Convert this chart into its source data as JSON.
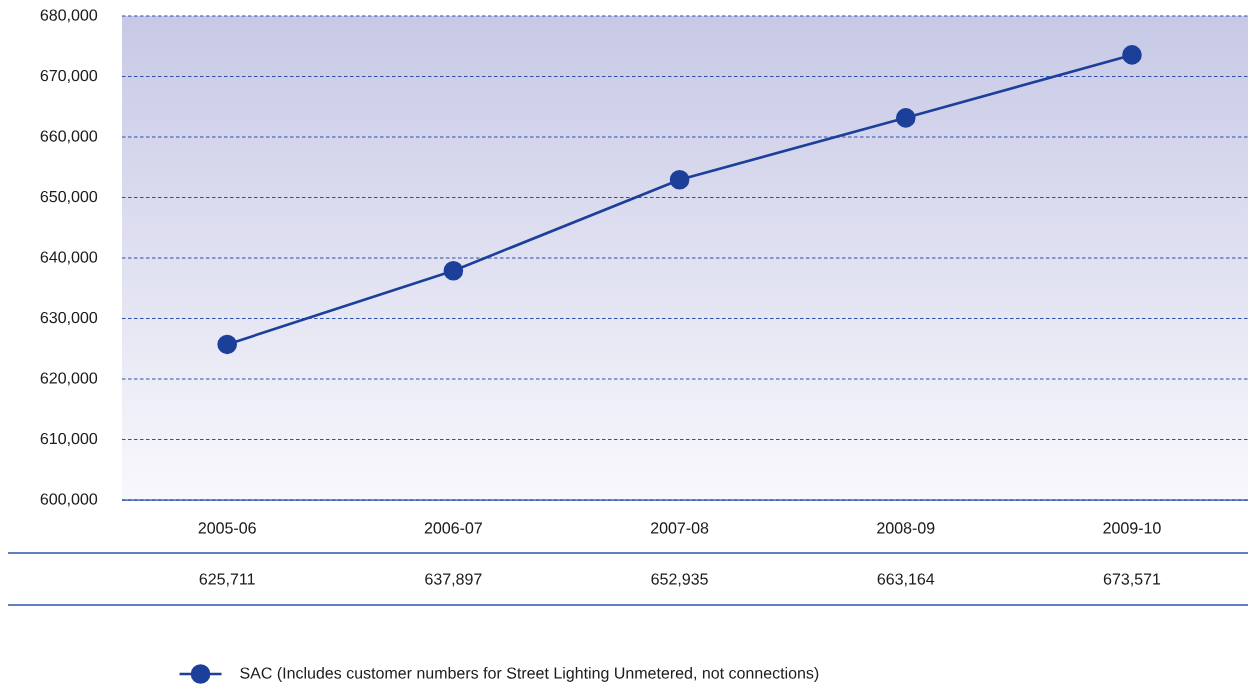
{
  "chart_data": {
    "type": "line",
    "categories": [
      "2005-06",
      "2006-07",
      "2007-08",
      "2008-09",
      "2009-10"
    ],
    "series": [
      {
        "name": "SAC (Includes customer numbers for Street Lighting Unmetered, not connections)",
        "color": "#1c3f9a",
        "values": [
          625711,
          637897,
          652935,
          663164,
          673571
        ],
        "value_labels": [
          "625,711",
          "637,897",
          "652,935",
          "663,164",
          "673,571"
        ]
      }
    ],
    "ylim": [
      600000,
      680000
    ],
    "yticks": [
      {
        "value": 600000,
        "label": "600,000"
      },
      {
        "value": 610000,
        "label": "610,000"
      },
      {
        "value": 620000,
        "label": "620,000"
      },
      {
        "value": 630000,
        "label": "630,000"
      },
      {
        "value": 640000,
        "label": "640,000"
      },
      {
        "value": 650000,
        "label": "650,000"
      },
      {
        "value": 660000,
        "label": "660,000"
      },
      {
        "value": 670000,
        "label": "670,000"
      },
      {
        "value": 680000,
        "label": "680,000"
      }
    ],
    "grid": "y",
    "legend": "bottom",
    "marker": "circle",
    "line_style": "solid"
  }
}
